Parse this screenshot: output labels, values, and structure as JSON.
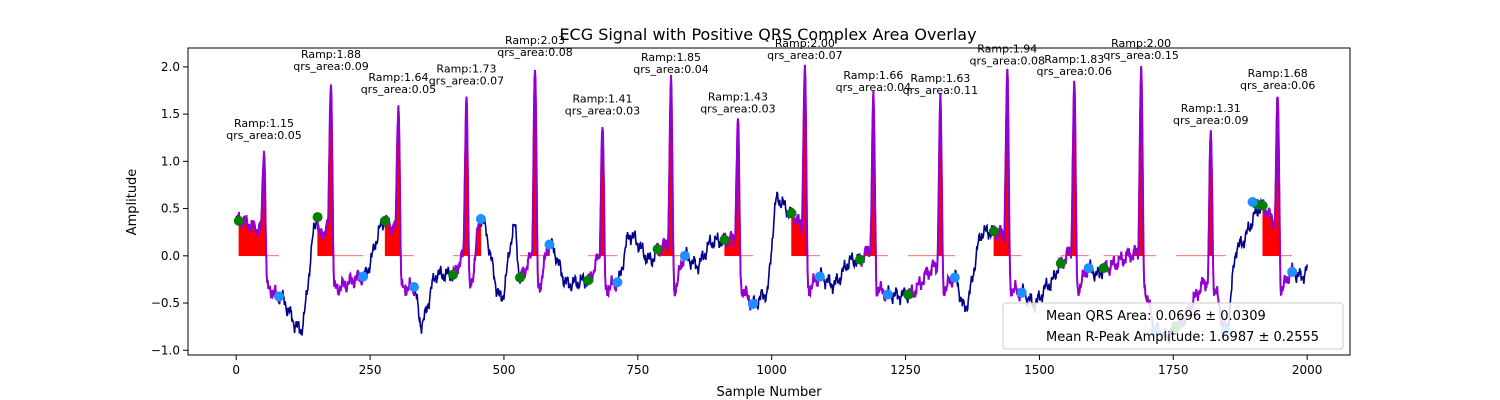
{
  "chart_data": {
    "type": "line",
    "title": "ECG Signal with Positive QRS Complex Area Overlay",
    "xlabel": "Sample Number",
    "ylabel": "Amplitude",
    "xlim": [
      -90,
      2080
    ],
    "ylim": [
      -1.05,
      2.2
    ],
    "xticks": [
      0,
      250,
      500,
      750,
      1000,
      1250,
      1500,
      1750,
      2000
    ],
    "yticks": [
      -1.0,
      -0.5,
      0.0,
      0.5,
      1.0,
      1.5,
      2.0
    ],
    "xtick_labels": [
      "0",
      "250",
      "500",
      "750",
      "1000",
      "1250",
      "1500",
      "1750",
      "2000"
    ],
    "ytick_labels": [
      "−1.0",
      "−0.5",
      "0.0",
      "0.5",
      "1.0",
      "1.5",
      "2.0"
    ],
    "grid": false,
    "colors": {
      "signal": "#00008b",
      "qrs_segment": "#9400d3",
      "area_fill": "#ff0000",
      "onset_marker": "#008000",
      "offset_marker": "#1e90ff"
    },
    "beats": [
      {
        "onset": 5,
        "r": 52,
        "offset": 80,
        "onset_amp": 0.37,
        "r_amp": 1.15,
        "offset_amp": -0.43,
        "ramp_label": "Ramp:1.15",
        "area_label": "qrs_area:0.05"
      },
      {
        "onset": 152,
        "r": 177,
        "offset": 237,
        "onset_amp": 0.41,
        "r_amp": 1.88,
        "offset_amp": -0.22,
        "ramp_label": "Ramp:1.88",
        "area_label": "qrs_area:0.09"
      },
      {
        "onset": 278,
        "r": 303,
        "offset": 332,
        "onset_amp": 0.37,
        "r_amp": 1.64,
        "offset_amp": -0.33,
        "ramp_label": "Ramp:1.64",
        "area_label": "qrs_area:0.05"
      },
      {
        "onset": 405,
        "r": 430,
        "offset": 457,
        "onset_amp": -0.2,
        "r_amp": 1.73,
        "offset_amp": 0.39,
        "ramp_label": "Ramp:1.73",
        "area_label": "qrs_area:0.07"
      },
      {
        "onset": 530,
        "r": 558,
        "offset": 585,
        "onset_amp": -0.23,
        "r_amp": 2.03,
        "offset_amp": 0.12,
        "ramp_label": "Ramp:2.03",
        "area_label": "qrs_area:0.08"
      },
      {
        "onset": 657,
        "r": 684,
        "offset": 712,
        "onset_amp": -0.26,
        "r_amp": 1.41,
        "offset_amp": -0.28,
        "ramp_label": "Ramp:1.41",
        "area_label": "qrs_area:0.03"
      },
      {
        "onset": 787,
        "r": 812,
        "offset": 838,
        "onset_amp": 0.07,
        "r_amp": 1.85,
        "offset_amp": 0.0,
        "ramp_label": "Ramp:1.85",
        "area_label": "qrs_area:0.04"
      },
      {
        "onset": 912,
        "r": 937,
        "offset": 965,
        "onset_amp": 0.17,
        "r_amp": 1.43,
        "offset_amp": -0.51,
        "ramp_label": "Ramp:1.43",
        "area_label": "qrs_area:0.03"
      },
      {
        "onset": 1037,
        "r": 1062,
        "offset": 1090,
        "onset_amp": 0.45,
        "r_amp": 2.0,
        "offset_amp": -0.22,
        "ramp_label": "Ramp:2.00",
        "area_label": "qrs_area:0.07"
      },
      {
        "onset": 1165,
        "r": 1190,
        "offset": 1217,
        "onset_amp": -0.04,
        "r_amp": 1.66,
        "offset_amp": -0.41,
        "ramp_label": "Ramp:1.66",
        "area_label": "qrs_area:0.04"
      },
      {
        "onset": 1255,
        "r": 1315,
        "offset": 1342,
        "onset_amp": -0.41,
        "r_amp": 1.63,
        "offset_amp": -0.23,
        "ramp_label": "Ramp:1.63",
        "area_label": "qrs_area:0.11"
      },
      {
        "onset": 1415,
        "r": 1440,
        "offset": 1467,
        "onset_amp": 0.26,
        "r_amp": 1.94,
        "offset_amp": -0.39,
        "ramp_label": "Ramp:1.94",
        "area_label": "qrs_area:0.08"
      },
      {
        "onset": 1540,
        "r": 1565,
        "offset": 1592,
        "onset_amp": -0.08,
        "r_amp": 1.83,
        "offset_amp": -0.13,
        "ramp_label": "Ramp:1.83",
        "area_label": "qrs_area:0.06"
      },
      {
        "onset": 1620,
        "r": 1690,
        "offset": 1717,
        "onset_amp": -0.13,
        "r_amp": 2.0,
        "offset_amp": -0.79,
        "ramp_label": "Ramp:2.00",
        "area_label": "qrs_area:0.15"
      },
      {
        "onset": 1755,
        "r": 1820,
        "offset": 1848,
        "onset_amp": -0.75,
        "r_amp": 1.31,
        "offset_amp": -0.79,
        "ramp_label": "Ramp:1.31",
        "area_label": "qrs_area:0.09"
      },
      {
        "onset": 1917,
        "r": 1945,
        "offset": 1972,
        "onset_amp": 0.53,
        "r_amp": 1.68,
        "offset_amp": -0.17,
        "ramp_label": "Ramp:1.68",
        "area_label": "qrs_area:0.06"
      }
    ],
    "extra_markers": [
      {
        "kind": "onset",
        "x": 1905,
        "y": 0.55
      },
      {
        "kind": "offset",
        "x": 1898,
        "y": 0.57
      }
    ],
    "baseline_waves": [
      {
        "x": 120,
        "y": -0.78
      },
      {
        "x": 155,
        "y": 0.2
      },
      {
        "x": 345,
        "y": -0.72
      },
      {
        "x": 375,
        "y": -0.2
      },
      {
        "x": 495,
        "y": -0.45
      },
      {
        "x": 520,
        "y": 0.3
      },
      {
        "x": 620,
        "y": -0.3
      },
      {
        "x": 735,
        "y": 0.22
      },
      {
        "x": 775,
        "y": -0.05
      },
      {
        "x": 860,
        "y": -0.1
      },
      {
        "x": 890,
        "y": 0.15
      },
      {
        "x": 990,
        "y": -0.4
      },
      {
        "x": 1010,
        "y": 0.6
      },
      {
        "x": 1115,
        "y": -0.3
      },
      {
        "x": 1150,
        "y": -0.05
      },
      {
        "x": 1240,
        "y": -0.42
      },
      {
        "x": 1360,
        "y": -0.55
      },
      {
        "x": 1395,
        "y": 0.25
      },
      {
        "x": 1490,
        "y": -0.5
      },
      {
        "x": 1520,
        "y": -0.3
      },
      {
        "x": 1610,
        "y": -0.2
      },
      {
        "x": 1740,
        "y": -0.85
      },
      {
        "x": 1870,
        "y": 0.1
      },
      {
        "x": 1990,
        "y": -0.22
      },
      {
        "x": 2000,
        "y": -0.15
      }
    ],
    "legend": {
      "location": "lower right",
      "entries": [
        {
          "label": "Mean QRS Area: 0.0696 ± 0.0309"
        },
        {
          "label": "Mean R-Peak Amplitude: 1.6987 ± 0.2555"
        }
      ]
    }
  }
}
